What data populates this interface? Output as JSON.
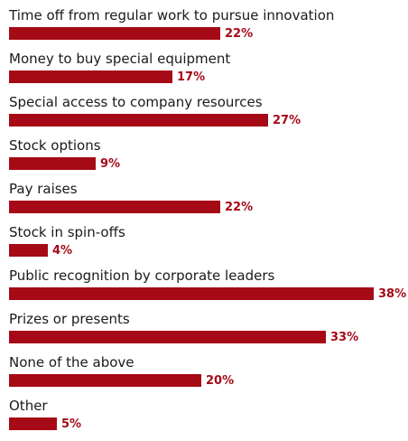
{
  "chart_data": {
    "type": "bar",
    "orientation": "horizontal",
    "categories": [
      "Time off from regular work to pursue innovation",
      "Money to buy special equipment",
      "Special access to company resources",
      "Stock options",
      "Pay raises",
      "Stock in spin-offs",
      "Public recognition by corporate leaders",
      "Prizes or presents",
      "None of the above",
      "Other"
    ],
    "values": [
      22,
      17,
      27,
      9,
      22,
      4,
      38,
      33,
      20,
      5
    ],
    "value_labels": [
      "22%",
      "17%",
      "27%",
      "9%",
      "22%",
      "4%",
      "38%",
      "33%",
      "20%",
      "5%"
    ],
    "value_suffix": "%",
    "xlim": [
      0,
      38
    ],
    "grid": false,
    "legend": "none",
    "colors": {
      "bar": "#a50a16",
      "value_label": "#a50a16",
      "category_label": "#1a1a1a"
    }
  }
}
